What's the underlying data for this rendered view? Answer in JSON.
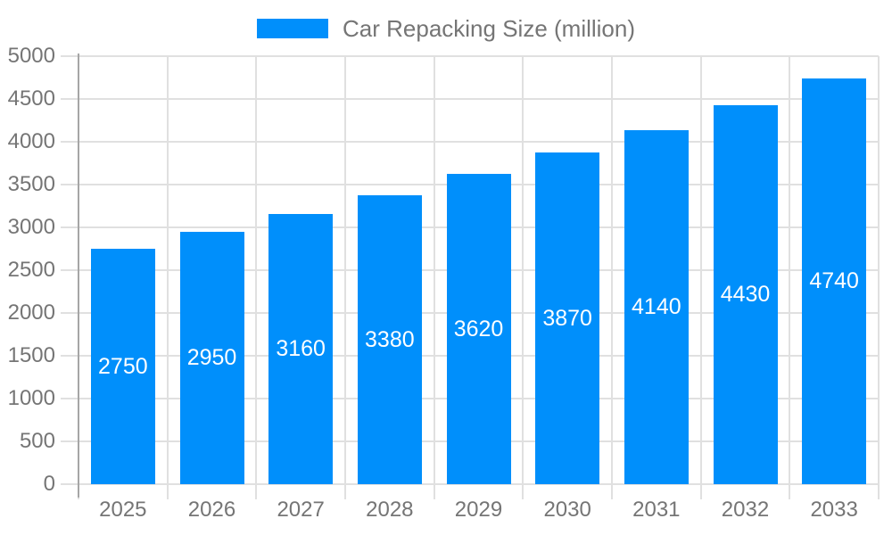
{
  "chart_data": {
    "type": "bar",
    "title": "",
    "legend": "Car Repacking Size (million)",
    "legend_position": "top",
    "categories": [
      "2025",
      "2026",
      "2027",
      "2028",
      "2029",
      "2030",
      "2031",
      "2032",
      "2033"
    ],
    "values": [
      2750,
      2950,
      3160,
      3380,
      3620,
      3870,
      4140,
      4430,
      4740
    ],
    "value_labels": [
      "2750",
      "2950",
      "3160",
      "3380",
      "3620",
      "3870",
      "4140",
      "4430",
      "4740"
    ],
    "xlabel": "",
    "ylabel": "",
    "ylim": [
      0,
      5000
    ],
    "ytick_step": 500,
    "yticks": [
      0,
      500,
      1000,
      1500,
      2000,
      2500,
      3000,
      3500,
      4000,
      4500,
      5000
    ],
    "grid": true,
    "value_label_position": "center-of-bar"
  },
  "colors": {
    "bar": "#008FFB",
    "grid": "#e0e0e0",
    "axis": "#a6a6a6",
    "label": "#757575",
    "value_label": "#ffffff",
    "background": "#ffffff"
  }
}
